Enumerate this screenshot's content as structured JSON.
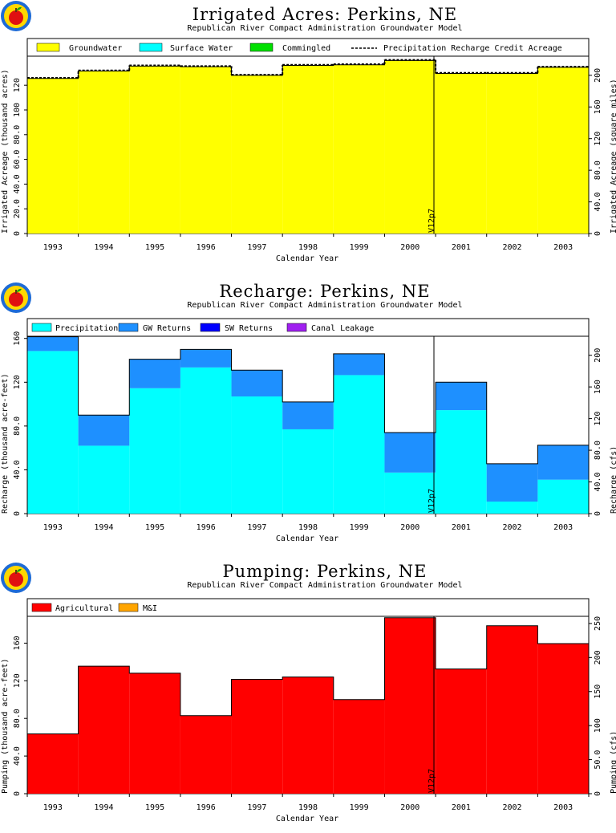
{
  "page": {
    "stamp": "V12p7"
  },
  "chart_data": [
    {
      "id": "acres",
      "type": "area",
      "step": true,
      "title": "Irrigated Acres: Perkins, NE",
      "subtitle": "Republican River Compact Administration Groundwater Model",
      "xlabel": "Calendar Year",
      "ylabel": "Irrigated Acreage (thousand acres)",
      "y2label": "Irrigated Acreage (square miles)",
      "categories": [
        "1993",
        "1994",
        "1995",
        "1996",
        "1997",
        "1998",
        "1999",
        "2000",
        "2001",
        "2002",
        "2003"
      ],
      "ylim": [
        0,
        143.5
      ],
      "yticks": [
        0,
        20.0,
        40.0,
        60.0,
        80.0,
        100,
        120
      ],
      "yticklabels": [
        "0",
        "20.0",
        "40.0",
        "60.0",
        "80.0",
        "100",
        "120"
      ],
      "y2lim": [
        0,
        224.2
      ],
      "y2ticks": [
        0,
        40.0,
        80.0,
        120,
        160,
        200
      ],
      "y2ticklabels": [
        "0",
        "40.0",
        "80.0",
        "120",
        "160",
        "200"
      ],
      "series": [
        {
          "name": "Groundwater",
          "color": "#ffff00",
          "values": [
            125.5,
            131.5,
            135.5,
            135.0,
            128.0,
            136.0,
            136.5,
            140.0,
            129.5,
            129.5,
            134.5
          ]
        },
        {
          "name": "Surface Water",
          "color": "#00ffff",
          "values": [
            0,
            0,
            0,
            0,
            0,
            0,
            0,
            0,
            0,
            0,
            0
          ]
        },
        {
          "name": "Commingled",
          "color": "#00e000",
          "values": [
            0,
            0,
            0,
            0,
            0,
            0,
            0,
            0,
            0,
            0,
            0
          ]
        }
      ],
      "overlay": {
        "name": "Precipitation Recharge Credit Acreage",
        "style": "dashed",
        "values": [
          126.0,
          132.0,
          136.0,
          135.5,
          128.5,
          136.5,
          137.0,
          140.5,
          130.0,
          130.0,
          135.0
        ]
      }
    },
    {
      "id": "recharge",
      "type": "area",
      "step": true,
      "title": "Recharge: Perkins, NE",
      "subtitle": "Republican River Compact Administration Groundwater Model",
      "xlabel": "Calendar Year",
      "ylabel": "Recharge (thousand acre-feet)",
      "y2label": "Recharge (cfs)",
      "categories": [
        "1993",
        "1994",
        "1995",
        "1996",
        "1997",
        "1998",
        "1999",
        "2000",
        "2001",
        "2002",
        "2003"
      ],
      "ylim": [
        0,
        162
      ],
      "yticks": [
        0,
        40.0,
        80.0,
        120,
        160
      ],
      "yticklabels": [
        "0",
        "40.0",
        "80.0",
        "120",
        "160"
      ],
      "y2lim": [
        0,
        224
      ],
      "y2ticks": [
        0,
        40.0,
        80.0,
        120,
        160,
        200
      ],
      "y2ticklabels": [
        "0",
        "40.0",
        "80.0",
        "120",
        "160",
        "200"
      ],
      "series": [
        {
          "name": "Precipitation",
          "color": "#00ffff",
          "values": [
            148.5,
            62.0,
            114.5,
            133.5,
            107.0,
            77.0,
            126.5,
            37.5,
            94.5,
            11.0,
            31.0
          ]
        },
        {
          "name": "GW Returns",
          "color": "#1e90ff",
          "values": [
            13.0,
            28.0,
            26.5,
            16.5,
            24.0,
            25.0,
            19.5,
            36.5,
            25.5,
            34.5,
            31.5
          ]
        },
        {
          "name": "SW Returns",
          "color": "#0000ff",
          "values": [
            0,
            0,
            0,
            0,
            0,
            0,
            0,
            0,
            0,
            0,
            0
          ]
        },
        {
          "name": "Canal Leakage",
          "color": "#a020f0",
          "values": [
            0,
            0,
            0,
            0,
            0,
            0,
            0,
            0,
            0,
            0,
            0
          ]
        }
      ]
    },
    {
      "id": "pumping",
      "type": "area",
      "step": true,
      "title": "Pumping: Perkins, NE",
      "subtitle": "Republican River Compact Administration Groundwater Model",
      "xlabel": "Calendar Year",
      "ylabel": "Pumping (thousand acre-feet)",
      "y2label": "Pumping (cfs)",
      "categories": [
        "1993",
        "1994",
        "1995",
        "1996",
        "1997",
        "1998",
        "1999",
        "2000",
        "2001",
        "2002",
        "2003"
      ],
      "ylim": [
        0,
        188.5
      ],
      "yticks": [
        0,
        40.0,
        80.0,
        120,
        160
      ],
      "yticklabels": [
        "0",
        "40.0",
        "80.0",
        "120",
        "160"
      ],
      "y2lim": [
        0,
        260.5
      ],
      "y2ticks": [
        0,
        50.0,
        100,
        150,
        200,
        250
      ],
      "y2ticklabels": [
        "0",
        "50.0",
        "100",
        "150",
        "200",
        "250"
      ],
      "series": [
        {
          "name": "Agricultural",
          "color": "#ff0000",
          "values": [
            63.5,
            135.5,
            128.0,
            83.0,
            121.5,
            124.0,
            100.0,
            187.0,
            132.5,
            178.5,
            159.5
          ]
        },
        {
          "name": "M&I",
          "color": "#ffa500",
          "values": [
            0,
            0,
            0,
            0,
            0,
            0,
            0,
            0,
            0,
            0,
            0
          ]
        }
      ]
    }
  ]
}
